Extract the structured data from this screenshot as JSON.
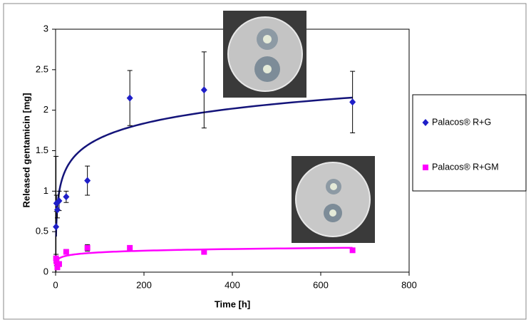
{
  "chart_data": {
    "type": "scatter",
    "xlabel": "Time [h]",
    "ylabel": "Released gentamicin [mg]",
    "x": [
      1,
      2,
      4,
      8,
      24,
      72,
      168,
      336,
      672
    ],
    "series": [
      {
        "name": "Palacos® R+G",
        "color": "#1f1fc8",
        "trend_color": "#14147a",
        "marker": "diamond",
        "values": [
          0.56,
          0.85,
          0.77,
          0.88,
          0.93,
          1.13,
          2.15,
          2.25,
          2.1
        ],
        "errors": [
          0.87,
          0.1,
          0.1,
          0.12,
          0.07,
          0.18,
          0.34,
          0.47,
          0.38
        ]
      },
      {
        "name": "Palacos® R+GM",
        "color": "#ff00ff",
        "trend_color": "#ff00ff",
        "marker": "square",
        "values": [
          0.17,
          0.13,
          0.06,
          0.1,
          0.25,
          0.3,
          0.3,
          0.25,
          0.27
        ],
        "errors": [
          0.05,
          0.05,
          0.03,
          0.03,
          0.03,
          0.04,
          0.03,
          0.02,
          0.02
        ]
      }
    ],
    "trendline": "logarithmic",
    "xlim": [
      0,
      800
    ],
    "xticks": [
      0,
      200,
      400,
      600,
      800
    ],
    "ylim": [
      0,
      3
    ],
    "yticks": [
      0,
      0.5,
      1,
      1.5,
      2,
      2.5,
      3
    ],
    "grid": false,
    "legend": "right"
  }
}
